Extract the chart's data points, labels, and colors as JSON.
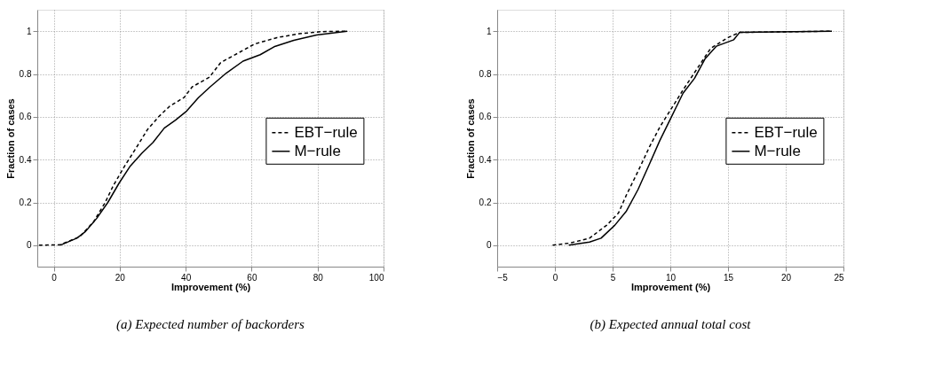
{
  "chart_data": [
    {
      "type": "line",
      "title": "(a) Expected number of backorders",
      "xlabel": "Improvement (%)",
      "ylabel": "Fraction of cases",
      "xlim": [
        -5,
        100
      ],
      "ylim": [
        -0.1,
        1.1
      ],
      "xticks": [
        0,
        20,
        40,
        60,
        80,
        100
      ],
      "yticks": [
        0,
        0.2,
        0.4,
        0.6,
        0.8,
        1
      ],
      "grid": true,
      "legend": "right",
      "series": [
        {
          "name": "EBT−rule",
          "color": "#000000",
          "line_style": "dashed",
          "x": [
            -4.5,
            1.9,
            7.9,
            12.1,
            15.6,
            18.1,
            21.5,
            25,
            28.4,
            31.8,
            35.2,
            39.5,
            42,
            47.2,
            50.6,
            55.7,
            60.9,
            67.7,
            74.5,
            81.4,
            89
          ],
          "values": [
            0,
            0.002,
            0.04,
            0.11,
            0.2,
            0.28,
            0.37,
            0.455,
            0.54,
            0.6,
            0.65,
            0.69,
            0.74,
            0.785,
            0.853,
            0.896,
            0.94,
            0.97,
            0.988,
            0.998,
            1
          ]
        },
        {
          "name": "M−rule",
          "color": "#000000",
          "line_style": "solid",
          "x": [
            1.9,
            7,
            9.6,
            13,
            16.4,
            19.8,
            23.2,
            26.7,
            30.1,
            33.5,
            36.9,
            40.3,
            43.8,
            47.2,
            52.3,
            57.4,
            62.6,
            66.8,
            72.8,
            79.7,
            89
          ],
          "values": [
            0,
            0.033,
            0.064,
            0.125,
            0.2,
            0.29,
            0.37,
            0.43,
            0.48,
            0.547,
            0.584,
            0.627,
            0.688,
            0.737,
            0.804,
            0.86,
            0.89,
            0.927,
            0.957,
            0.982,
            1
          ]
        }
      ]
    },
    {
      "type": "line",
      "title": "(b) Expected annual total cost",
      "xlabel": "Improvement (%)",
      "ylabel": "Fraction of cases",
      "xlim": [
        -5,
        25
      ],
      "ylim": [
        -0.1,
        1.1
      ],
      "xticks": [
        {
          "value": -5,
          "label": "−5"
        },
        0,
        5,
        10,
        15,
        20,
        25
      ],
      "yticks": [
        0,
        0.2,
        0.4,
        0.6,
        0.8,
        1
      ],
      "grid": true,
      "legend": "right",
      "series": [
        {
          "name": "EBT−rule",
          "color": "#000000",
          "line_style": "dashed",
          "x": [
            -0.2,
            1.3,
            3,
            4.5,
            5.5,
            6.2,
            7.2,
            8.2,
            9.1,
            10.1,
            11.1,
            12.3,
            13.5,
            15,
            16,
            24
          ],
          "values": [
            0,
            0.01,
            0.033,
            0.094,
            0.15,
            0.235,
            0.345,
            0.46,
            0.553,
            0.639,
            0.725,
            0.823,
            0.92,
            0.97,
            0.994,
            1
          ]
        },
        {
          "name": "M−rule",
          "color": "#000000",
          "line_style": "solid",
          "x": [
            1.2,
            3,
            4,
            5.2,
            6.2,
            7.2,
            8.2,
            9.1,
            10.1,
            11.1,
            12.1,
            13,
            14,
            15.5,
            16,
            24
          ],
          "values": [
            0,
            0.015,
            0.033,
            0.094,
            0.16,
            0.26,
            0.38,
            0.49,
            0.6,
            0.71,
            0.78,
            0.87,
            0.93,
            0.96,
            0.994,
            1
          ]
        }
      ]
    }
  ]
}
